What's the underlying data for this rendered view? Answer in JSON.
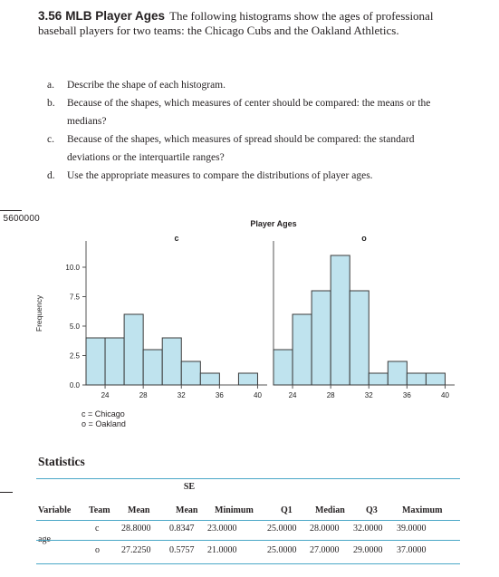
{
  "edge": {
    "number": "5600000"
  },
  "problem": {
    "number": "3.56",
    "title": "MLB Player Ages",
    "body": "The following histograms show the ages of professional baseball players for two teams: the Chicago Cubs and the Oakland Athletics.",
    "parts": [
      {
        "label": "a.",
        "text": "Describe the shape of each histogram."
      },
      {
        "label": "b.",
        "text": "Because of the shapes, which measures of center should be compared: the means or the medians?"
      },
      {
        "label": "c.",
        "text": "Because of the shapes, which measures of spread should be compared: the standard deviations or the interquartile ranges?"
      },
      {
        "label": "d.",
        "text": "Use the appropriate measures to compare the distributions of player ages."
      }
    ]
  },
  "chart_data": {
    "type": "bar",
    "title": "Player Ages",
    "ylabel": "Frequency",
    "xlabel": "",
    "ylim": [
      0,
      11
    ],
    "yticks": [
      "0.0",
      "2.5",
      "5.0",
      "7.5",
      "10.0"
    ],
    "xticks": [
      "24",
      "28",
      "32",
      "36",
      "40"
    ],
    "bin_edges": [
      22,
      24,
      26,
      28,
      30,
      32,
      34,
      36,
      38,
      40
    ],
    "grid": false,
    "panels": [
      {
        "name": "c",
        "values": [
          4,
          4,
          6,
          3,
          4,
          2,
          1,
          0,
          1
        ]
      },
      {
        "name": "o",
        "values": [
          3,
          6,
          8,
          11,
          8,
          1,
          2,
          1,
          1
        ]
      }
    ],
    "legend": [
      {
        "key": "c",
        "label": "Chicago"
      },
      {
        "key": "o",
        "label": "Oakland"
      }
    ],
    "bar_color": "#bfe3ee",
    "bar_edge": "#3b3b3b"
  },
  "statistics": {
    "heading": "Statistics",
    "se_header": "SE",
    "columns": [
      "Variable",
      "Team",
      "Mean",
      "Mean",
      "Minimum",
      "Q1",
      "Median",
      "Q3",
      "Maximum"
    ],
    "variable": "age",
    "rows": [
      {
        "team": "c",
        "mean": "28.8000",
        "se": "0.8347",
        "min": "23.0000",
        "q1": "25.0000",
        "median": "28.0000",
        "q3": "32.0000",
        "max": "39.0000"
      },
      {
        "team": "o",
        "mean": "27.2250",
        "se": "0.5757",
        "min": "21.0000",
        "q1": "25.0000",
        "median": "27.0000",
        "q3": "29.0000",
        "max": "37.0000"
      }
    ],
    "rule_color": "#4aa7c7"
  }
}
